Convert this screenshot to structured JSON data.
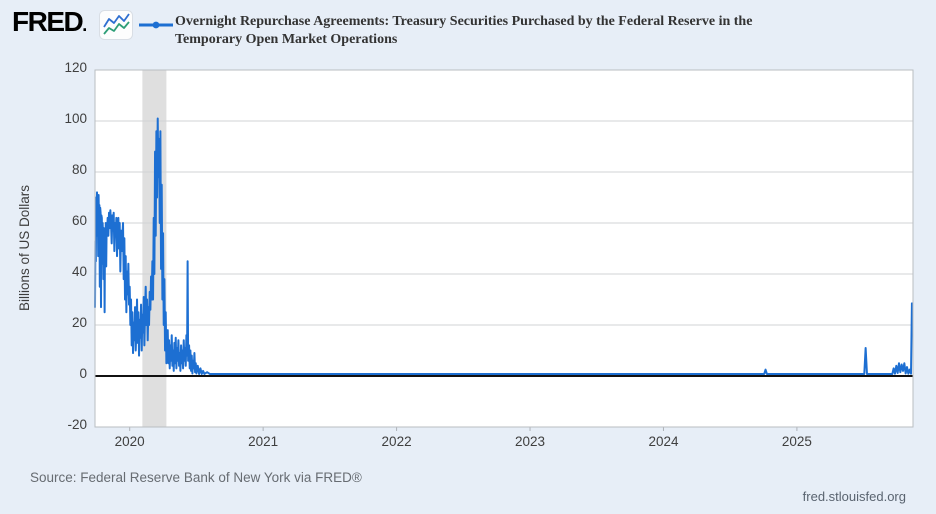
{
  "header": {
    "logo_text": "FRED",
    "logo_suffix": ".",
    "title_line1": "Overnight Repurchase Agreements: Treasury Securities Purchased by the Federal Reserve in the",
    "title_line2": "Temporary Open Market Operations"
  },
  "footer": {
    "source": "Source: Federal Reserve Bank of New York via FRED®",
    "site": "fred.stlouisfed.org"
  },
  "chart_data": {
    "type": "line",
    "title": "Overnight Repurchase Agreements: Treasury Securities Purchased by the Federal Reserve in the Temporary Open Market Operations",
    "xlabel": "",
    "ylabel": "Billions of US Dollars",
    "x_ticks": [
      2020,
      2021,
      2022,
      2023,
      2024,
      2025
    ],
    "y_ticks": [
      120,
      100,
      80,
      60,
      40,
      20,
      0,
      -20
    ],
    "xlim": [
      2019.74,
      2025.87
    ],
    "ylim": [
      -20,
      120
    ],
    "grid": "horizontal",
    "legend_position": "top",
    "line_color": "#1d6fd2",
    "zero_line_color": "#111111",
    "recession_band": {
      "start": 2020.095,
      "end": 2020.275,
      "color": "#dfdfdf"
    },
    "series": [
      {
        "name": "Overnight Repurchase Agreements: Treasury Securities Purchased by the Federal Reserve in the Temporary Open Market Operations",
        "points": [
          [
            2019.74,
            27
          ],
          [
            2019.743,
            53
          ],
          [
            2019.746,
            45
          ],
          [
            2019.749,
            70
          ],
          [
            2019.752,
            62
          ],
          [
            2019.755,
            72
          ],
          [
            2019.758,
            55
          ],
          [
            2019.761,
            68
          ],
          [
            2019.764,
            47
          ],
          [
            2019.767,
            71
          ],
          [
            2019.77,
            58
          ],
          [
            2019.773,
            67
          ],
          [
            2019.776,
            35
          ],
          [
            2019.779,
            66
          ],
          [
            2019.782,
            64
          ],
          [
            2019.785,
            27
          ],
          [
            2019.788,
            63
          ],
          [
            2019.791,
            62
          ],
          [
            2019.794,
            44
          ],
          [
            2019.797,
            60
          ],
          [
            2019.8,
            56
          ],
          [
            2019.803,
            38
          ],
          [
            2019.806,
            58
          ],
          [
            2019.809,
            55
          ],
          [
            2019.812,
            25
          ],
          [
            2019.815,
            57
          ],
          [
            2019.818,
            52
          ],
          [
            2019.821,
            60
          ],
          [
            2019.824,
            43
          ],
          [
            2019.827,
            58
          ],
          [
            2019.83,
            55
          ],
          [
            2019.835,
            62
          ],
          [
            2019.84,
            55
          ],
          [
            2019.845,
            64
          ],
          [
            2019.85,
            58
          ],
          [
            2019.855,
            65
          ],
          [
            2019.86,
            60
          ],
          [
            2019.865,
            52
          ],
          [
            2019.87,
            63
          ],
          [
            2019.875,
            57
          ],
          [
            2019.88,
            64
          ],
          [
            2019.885,
            49
          ],
          [
            2019.89,
            60
          ],
          [
            2019.895,
            55
          ],
          [
            2019.9,
            62
          ],
          [
            2019.905,
            47
          ],
          [
            2019.91,
            58
          ],
          [
            2019.915,
            62
          ],
          [
            2019.92,
            50
          ],
          [
            2019.925,
            60
          ],
          [
            2019.93,
            41
          ],
          [
            2019.935,
            57
          ],
          [
            2019.94,
            49
          ],
          [
            2019.945,
            55
          ],
          [
            2019.95,
            60
          ],
          [
            2019.955,
            38
          ],
          [
            2019.96,
            54
          ],
          [
            2019.965,
            30
          ],
          [
            2019.97,
            47
          ],
          [
            2019.975,
            25
          ],
          [
            2019.98,
            41
          ],
          [
            2019.985,
            32
          ],
          [
            2019.99,
            44
          ],
          [
            2019.995,
            28
          ],
          [
            2020.0,
            35
          ],
          [
            2020.005,
            20
          ],
          [
            2020.01,
            30
          ],
          [
            2020.015,
            12
          ],
          [
            2020.02,
            25
          ],
          [
            2020.025,
            9
          ],
          [
            2020.03,
            21
          ],
          [
            2020.035,
            14
          ],
          [
            2020.04,
            27
          ],
          [
            2020.045,
            10
          ],
          [
            2020.05,
            18
          ],
          [
            2020.055,
            30
          ],
          [
            2020.06,
            13
          ],
          [
            2020.065,
            25
          ],
          [
            2020.07,
            8
          ],
          [
            2020.075,
            22
          ],
          [
            2020.08,
            15
          ],
          [
            2020.085,
            28
          ],
          [
            2020.09,
            10
          ],
          [
            2020.095,
            24
          ],
          [
            2020.1,
            17
          ],
          [
            2020.105,
            31
          ],
          [
            2020.11,
            12
          ],
          [
            2020.115,
            25
          ],
          [
            2020.12,
            35
          ],
          [
            2020.125,
            20
          ],
          [
            2020.13,
            30
          ],
          [
            2020.135,
            14
          ],
          [
            2020.14,
            27
          ],
          [
            2020.145,
            20
          ],
          [
            2020.15,
            33
          ],
          [
            2020.155,
            26
          ],
          [
            2020.16,
            39
          ],
          [
            2020.165,
            30
          ],
          [
            2020.17,
            45
          ],
          [
            2020.175,
            30
          ],
          [
            2020.18,
            62
          ],
          [
            2020.185,
            40
          ],
          [
            2020.19,
            88
          ],
          [
            2020.195,
            55
          ],
          [
            2020.2,
            96
          ],
          [
            2020.205,
            70
          ],
          [
            2020.21,
            101
          ],
          [
            2020.215,
            78
          ],
          [
            2020.22,
            93
          ],
          [
            2020.225,
            60
          ],
          [
            2020.23,
            96
          ],
          [
            2020.235,
            42
          ],
          [
            2020.24,
            75
          ],
          [
            2020.245,
            30
          ],
          [
            2020.25,
            56
          ],
          [
            2020.255,
            20
          ],
          [
            2020.26,
            38
          ],
          [
            2020.265,
            10
          ],
          [
            2020.27,
            25
          ],
          [
            2020.275,
            5
          ],
          [
            2020.28,
            8
          ],
          [
            2020.285,
            18
          ],
          [
            2020.29,
            5
          ],
          [
            2020.295,
            14
          ],
          [
            2020.3,
            3
          ],
          [
            2020.305,
            12
          ],
          [
            2020.31,
            6
          ],
          [
            2020.315,
            16
          ],
          [
            2020.32,
            4
          ],
          [
            2020.325,
            10
          ],
          [
            2020.33,
            2
          ],
          [
            2020.335,
            13
          ],
          [
            2020.34,
            5
          ],
          [
            2020.345,
            15
          ],
          [
            2020.35,
            3
          ],
          [
            2020.355,
            11
          ],
          [
            2020.36,
            6
          ],
          [
            2020.365,
            14
          ],
          [
            2020.37,
            4
          ],
          [
            2020.375,
            9
          ],
          [
            2020.38,
            2
          ],
          [
            2020.385,
            12
          ],
          [
            2020.39,
            5
          ],
          [
            2020.395,
            10
          ],
          [
            2020.4,
            3
          ],
          [
            2020.405,
            14
          ],
          [
            2020.41,
            6
          ],
          [
            2020.415,
            11
          ],
          [
            2020.42,
            4
          ],
          [
            2020.425,
            16
          ],
          [
            2020.43,
            8
          ],
          [
            2020.434,
            45
          ],
          [
            2020.438,
            6
          ],
          [
            2020.445,
            12
          ],
          [
            2020.45,
            3
          ],
          [
            2020.455,
            10
          ],
          [
            2020.46,
            2
          ],
          [
            2020.465,
            8
          ],
          [
            2020.47,
            1
          ],
          [
            2020.475,
            6
          ],
          [
            2020.48,
            3
          ],
          [
            2020.485,
            9
          ],
          [
            2020.49,
            1.5
          ],
          [
            2020.495,
            5
          ],
          [
            2020.5,
            1
          ],
          [
            2020.51,
            4
          ],
          [
            2020.52,
            0.8
          ],
          [
            2020.53,
            3
          ],
          [
            2020.54,
            0.8
          ],
          [
            2020.55,
            2
          ],
          [
            2020.56,
            0.8
          ],
          [
            2020.58,
            1.5
          ],
          [
            2020.6,
            0.8
          ],
          [
            2020.7,
            0.8
          ],
          [
            2021.0,
            0.8
          ],
          [
            2021.5,
            0.8
          ],
          [
            2022.0,
            0.8
          ],
          [
            2022.5,
            0.8
          ],
          [
            2023.0,
            0.8
          ],
          [
            2023.5,
            0.8
          ],
          [
            2024.0,
            0.8
          ],
          [
            2024.5,
            0.8
          ],
          [
            2024.755,
            0.8
          ],
          [
            2024.765,
            2.5
          ],
          [
            2024.775,
            0.8
          ],
          [
            2025.0,
            0.8
          ],
          [
            2025.3,
            0.8
          ],
          [
            2025.505,
            0.8
          ],
          [
            2025.515,
            11
          ],
          [
            2025.525,
            0.8
          ],
          [
            2025.6,
            0.8
          ],
          [
            2025.715,
            0.8
          ],
          [
            2025.725,
            3
          ],
          [
            2025.735,
            0.9
          ],
          [
            2025.745,
            4
          ],
          [
            2025.755,
            1.2
          ],
          [
            2025.765,
            5
          ],
          [
            2025.775,
            1.5
          ],
          [
            2025.785,
            4.5
          ],
          [
            2025.795,
            2
          ],
          [
            2025.805,
            5
          ],
          [
            2025.815,
            1
          ],
          [
            2025.825,
            3.5
          ],
          [
            2025.835,
            0.9
          ],
          [
            2025.845,
            2.5
          ],
          [
            2025.855,
            0.9
          ],
          [
            2025.862,
            28.5
          ]
        ]
      }
    ]
  }
}
